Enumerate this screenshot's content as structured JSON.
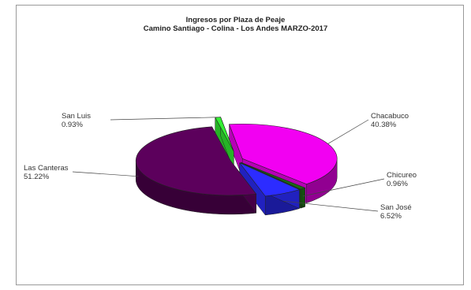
{
  "chart_data": {
    "type": "pie",
    "title": "Ingresos por Plaza de Peaje",
    "subtitle": "Camino Santiago - Colina - Los Andes MARZO-2017",
    "slices": [
      {
        "name": "Chacabuco",
        "pct_label": "40.38%",
        "value": 40.38,
        "color": "#f200f2"
      },
      {
        "name": "Chicureo",
        "pct_label": "0.96%",
        "value": 0.96,
        "color": "#1a6a12"
      },
      {
        "name": "San José",
        "pct_label": "6.52%",
        "value": 6.52,
        "color": "#2c2cff"
      },
      {
        "name": "Las Canteras",
        "pct_label": "51.22%",
        "value": 51.22,
        "color": "#5c005c"
      },
      {
        "name": "San Luis",
        "pct_label": "0.93%",
        "value": 0.93,
        "color": "#33ee33"
      }
    ]
  }
}
